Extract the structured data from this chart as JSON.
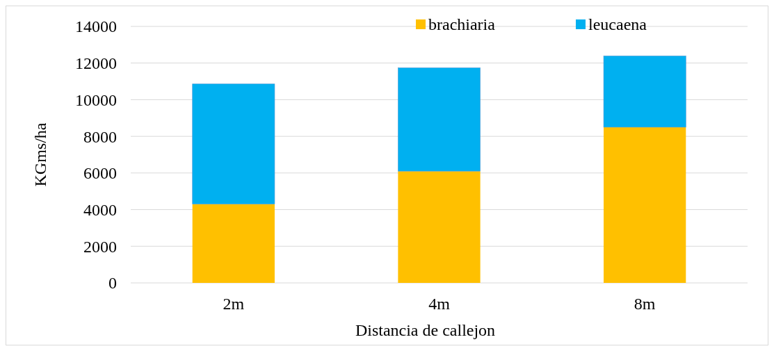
{
  "chart_data": {
    "type": "bar",
    "stacked": true,
    "xlabel": "Distancia de callejon",
    "ylabel": "KGms/ha",
    "categories": [
      "2m",
      "4m",
      "8m"
    ],
    "series": [
      {
        "name": "brachiaria",
        "color": "#ffc000",
        "values": [
          4300,
          6100,
          8500
        ]
      },
      {
        "name": "leucaena",
        "color": "#00b0f0",
        "values": [
          6560,
          5640,
          3890
        ]
      }
    ],
    "ylim": [
      0,
      14000
    ],
    "yticks": [
      0,
      2000,
      4000,
      6000,
      8000,
      10000,
      12000,
      14000
    ],
    "grid": "y",
    "legend": "top right"
  }
}
